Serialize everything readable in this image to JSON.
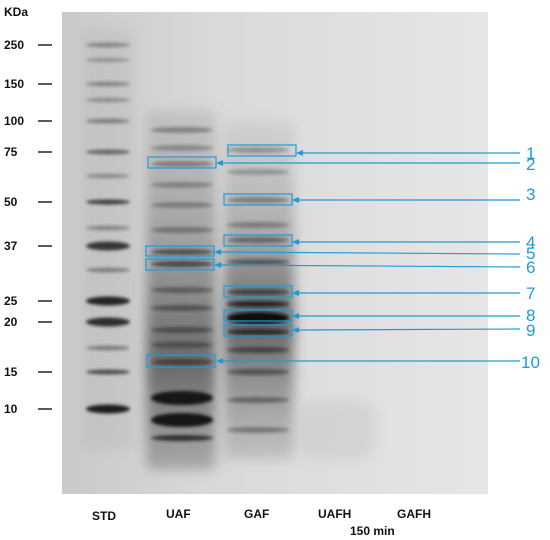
{
  "figure": {
    "unit_label": "KDa",
    "time_label": "150 min",
    "accent_color": "#1e9bd7"
  },
  "markers": [
    {
      "label": "250"
    },
    {
      "label": "150"
    },
    {
      "label": "100"
    },
    {
      "label": "75"
    },
    {
      "label": "50"
    },
    {
      "label": "37"
    },
    {
      "label": "25"
    },
    {
      "label": "20"
    },
    {
      "label": "15"
    },
    {
      "label": "10"
    }
  ],
  "lanes": [
    {
      "label": "STD"
    },
    {
      "label": "UAF"
    },
    {
      "label": "GAF"
    },
    {
      "label": "UAFH"
    },
    {
      "label": "GAFH"
    }
  ],
  "callouts": [
    {
      "number": "1"
    },
    {
      "number": "2"
    },
    {
      "number": "3"
    },
    {
      "number": "4"
    },
    {
      "number": "5"
    },
    {
      "number": "6"
    },
    {
      "number": "7"
    },
    {
      "number": "8"
    },
    {
      "number": "9"
    },
    {
      "number": "10"
    }
  ]
}
